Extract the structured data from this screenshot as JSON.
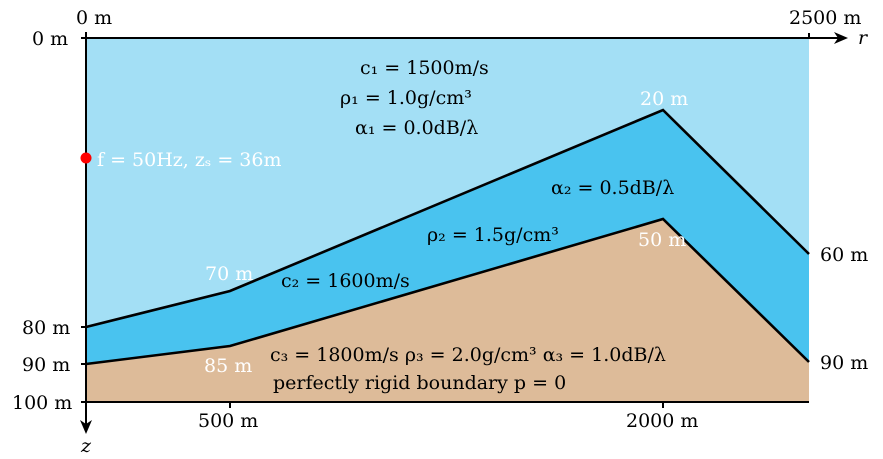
{
  "colors": {
    "water": "#a3dff5",
    "sediment": "#49c3ef",
    "bottom": "#ddbb99",
    "source": "#ff0000",
    "line": "#000000",
    "white_text": "#ffffff"
  },
  "axes": {
    "r_label": "r",
    "z_label": "z",
    "top_left": "0 m",
    "top_right": "2500 m",
    "depth_0": "0 m",
    "depth_80": "80 m",
    "depth_90": "90 m",
    "depth_100": "100 m",
    "range_500": "500 m",
    "range_2000": "2000 m",
    "right_60": "60 m",
    "right_90": "90 m"
  },
  "interface_labels": {
    "l20": "20 m",
    "l50": "50 m",
    "l70": "70 m",
    "l85": "85 m"
  },
  "layer1": {
    "c1": "c₁ = 1500m/s",
    "rho1": "ρ₁ = 1.0g/cm³",
    "alpha1": "α₁ = 0.0dB/λ"
  },
  "layer2": {
    "alpha2": "α₂ = 0.5dB/λ",
    "rho2": "ρ₂ = 1.5g/cm³",
    "c2": "c₂ = 1600m/s"
  },
  "layer3": {
    "params": "c₃ = 1800m/s  ρ₃ = 2.0g/cm³  α₃ = 1.0dB/λ",
    "boundary": "perfectly rigid boundary p = 0"
  },
  "source": {
    "label": "f = 50Hz, zₛ = 36m"
  }
}
